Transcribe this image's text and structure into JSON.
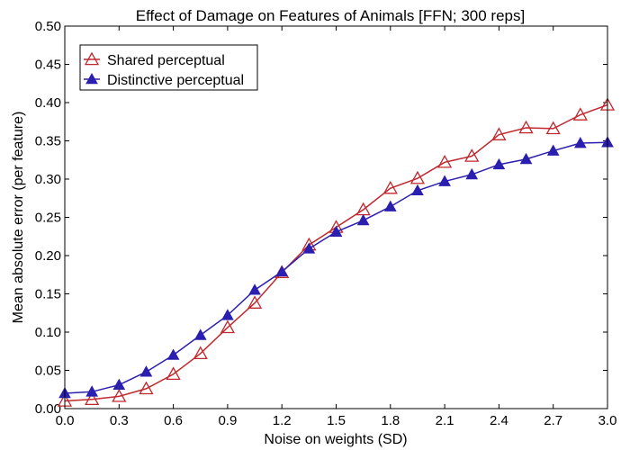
{
  "chart_data": {
    "type": "line",
    "title": "Effect of Damage on Features of Animals [FFN; 300 reps]",
    "xlabel": "Noise on weights (SD)",
    "ylabel": "Mean absolute error (per feature)",
    "xlim": [
      0.0,
      3.0
    ],
    "ylim": [
      0.0,
      0.5
    ],
    "xticks": [
      "0.0",
      "0.3",
      "0.6",
      "0.9",
      "1.2",
      "1.5",
      "1.8",
      "2.1",
      "2.4",
      "2.7",
      "3.0"
    ],
    "yticks": [
      "0.00",
      "0.05",
      "0.10",
      "0.15",
      "0.20",
      "0.25",
      "0.30",
      "0.35",
      "0.40",
      "0.45",
      "0.50"
    ],
    "grid": false,
    "legend_position": "top-left",
    "x": [
      0.0,
      0.15,
      0.3,
      0.45,
      0.6,
      0.75,
      0.9,
      1.05,
      1.2,
      1.35,
      1.5,
      1.65,
      1.8,
      1.95,
      2.1,
      2.25,
      2.4,
      2.55,
      2.7,
      2.85,
      3.0
    ],
    "series": [
      {
        "name": "Shared perceptual",
        "marker": "open-triangle",
        "color": "#c0282d",
        "values": [
          0.01,
          0.012,
          0.016,
          0.026,
          0.045,
          0.072,
          0.106,
          0.138,
          0.178,
          0.214,
          0.237,
          0.26,
          0.288,
          0.301,
          0.322,
          0.33,
          0.358,
          0.367,
          0.366,
          0.384,
          0.397
        ]
      },
      {
        "name": "Distinctive perceptual",
        "marker": "filled-triangle",
        "color": "#2b1fb0",
        "values": [
          0.02,
          0.022,
          0.031,
          0.048,
          0.07,
          0.096,
          0.122,
          0.155,
          0.179,
          0.209,
          0.231,
          0.246,
          0.264,
          0.285,
          0.297,
          0.306,
          0.319,
          0.326,
          0.337,
          0.347,
          0.348
        ]
      }
    ]
  }
}
